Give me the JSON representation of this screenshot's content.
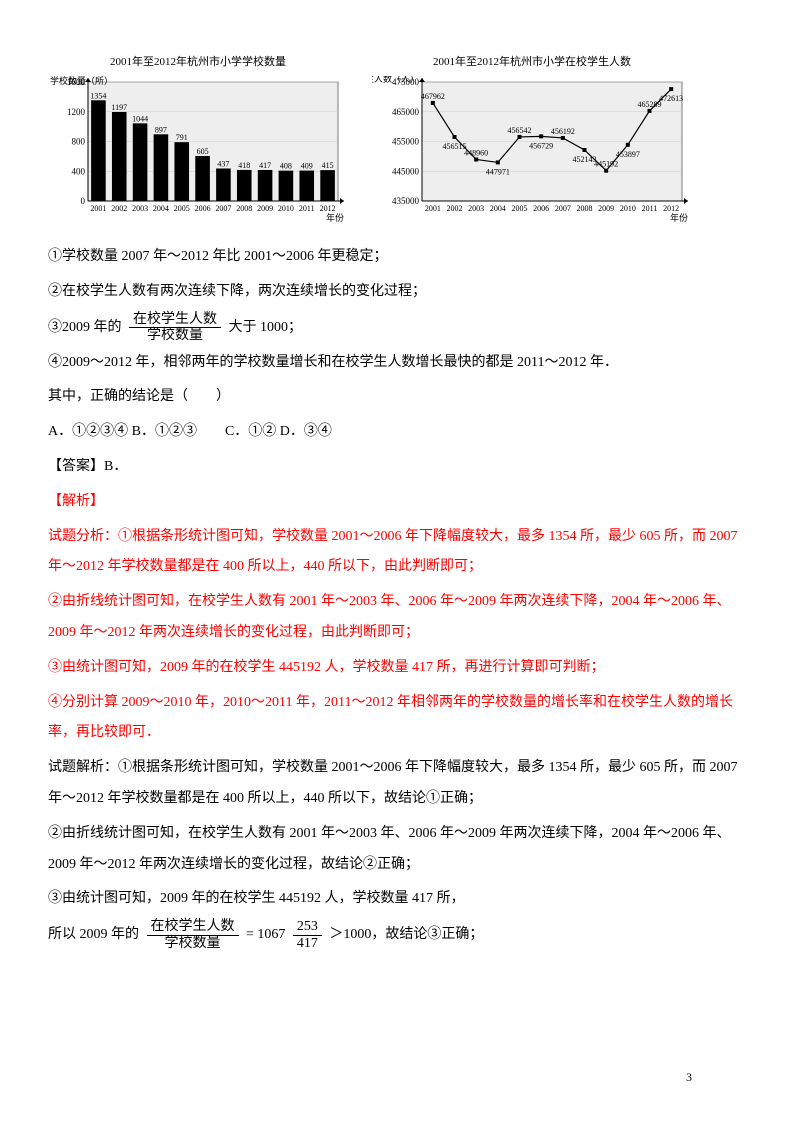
{
  "chart1": {
    "type": "bar",
    "title": "2001年至2012年杭州市小学学校数量",
    "ylabel": "学校数量（所）",
    "xlabel": "年份",
    "categories": [
      "2001",
      "2002",
      "2003",
      "2004",
      "2005",
      "2006",
      "2007",
      "2008",
      "2009",
      "2010",
      "2011",
      "2012"
    ],
    "values": [
      1354,
      1197,
      1044,
      897,
      791,
      605,
      437,
      418,
      417,
      408,
      409,
      415
    ],
    "ylim": [
      0,
      1600
    ],
    "ytick_step": 400,
    "bar_color": "#000000",
    "background_color": "#eeeeee",
    "grid_color": "#cccccc",
    "font_size_title": 11,
    "font_size_axis": 9,
    "font_size_value": 8
  },
  "chart2": {
    "type": "line",
    "title": "2001年至2012年杭州市小学在校学生人数",
    "ylabel": "学生人数（人）",
    "xlabel": "年份",
    "categories": [
      "2001",
      "2002",
      "2003",
      "2004",
      "2005",
      "2006",
      "2007",
      "2008",
      "2009",
      "2010",
      "2011",
      "2012"
    ],
    "values": [
      467962,
      456515,
      448960,
      447971,
      456542,
      456729,
      456192,
      452143,
      445192,
      453897,
      465289,
      472613
    ],
    "ylim": [
      435000,
      475000
    ],
    "ytick_step": 10000,
    "line_color": "#000000",
    "marker_fill": "#000000",
    "background_color": "#eeeeee",
    "grid_color": "#cccccc",
    "font_size_title": 11,
    "font_size_axis": 9,
    "font_size_value": 8
  },
  "statements": {
    "s1": "①学校数量 2007 年～2012 年比 2001～2006 年更稳定；",
    "s2": "②在校学生人数有两次连续下降，两次连续增长的变化过程；",
    "s3_prefix": "③2009 年的",
    "s3_num": "在校学生人数",
    "s3_den": "学校数量",
    "s3_suffix": "大于 1000；",
    "s4": "④2009～2012 年，相邻两年的学校数量增长和在校学生人数增长最快的都是 2011～2012 年．",
    "q_prompt": "其中，正确的结论是（　　）",
    "options": "A．①②③④  B．①②③　　C．①②  D．③④",
    "answer": "【答案】B．",
    "analysis_label": "【解析】",
    "red1": "试题分析：①根据条形统计图可知，学校数量 2001～2006 年下降幅度较大，最多 1354 所，最少 605 所，而 2007 年～2012 年学校数量都是在 400 所以上，440 所以下，由此判断即可；",
    "red2": "②由折线统计图可知，在校学生人数有 2001 年～2003 年、2006 年～2009 年两次连续下降，2004 年～2006 年、2009 年～2012 年两次连续增长的变化过程，由此判断即可；",
    "red3": "③由统计图可知，2009 年的在校学生 445192 人，学校数量 417 所，再进行计算即可判断；",
    "red4": "④分别计算 2009～2010 年，2010～2011 年，2011～2012 年相邻两年的学校数量的增长率和在校学生人数的增长率，再比较即可．",
    "b1": "试题解析：①根据条形统计图可知，学校数量 2001～2006 年下降幅度较大，最多 1354 所，最少 605 所，而 2007 年～2012 年学校数量都是在 400 所以上，440 所以下，故结论①正确；",
    "b2": "②由折线统计图可知，在校学生人数有 2001 年～2003 年、2006 年～2009 年两次连续下降，2004 年～2006 年、2009 年～2012 年两次连续增长的变化过程，故结论②正确；",
    "b3": "③由统计图可知，2009 年的在校学生 445192 人，学校数量 417 所，",
    "b4_prefix": "所以 2009 年的",
    "b4_num1": "在校学生人数",
    "b4_den1": "学校数量",
    "b4_mid": " = 1067",
    "b4_num2": "253",
    "b4_den2": "417",
    "b4_suffix": "＞1000，故结论③正确；"
  },
  "page_number": "3"
}
